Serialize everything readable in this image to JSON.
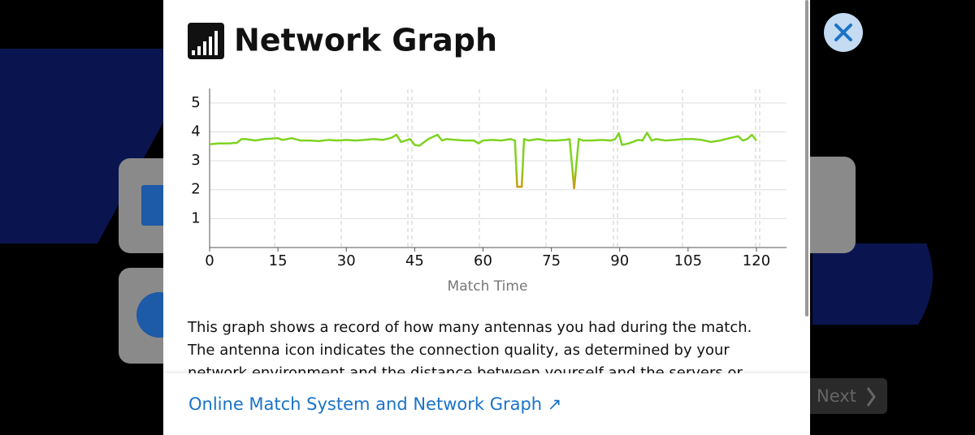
{
  "header": {
    "title": "Network Graph"
  },
  "chart_data": {
    "type": "line",
    "xlabel": "Match Time",
    "x": [
      0,
      2,
      4,
      6,
      7,
      8,
      10,
      12,
      14,
      15,
      16,
      18,
      20,
      22,
      24,
      26,
      28,
      30,
      32,
      34,
      36,
      38,
      40,
      41,
      42,
      43,
      44,
      45,
      46,
      48,
      50,
      51,
      52,
      54,
      56,
      58,
      59,
      60,
      62,
      64,
      66,
      67,
      67.5,
      68.5,
      69,
      70,
      72,
      74,
      76,
      78,
      79,
      80,
      81,
      82,
      84,
      86,
      88,
      89,
      89.8,
      90.5,
      92,
      94,
      95,
      96,
      97,
      98,
      100,
      102,
      104,
      106,
      108,
      110,
      112,
      114,
      116,
      117,
      118,
      119,
      120
    ],
    "values": [
      3.57,
      3.6,
      3.6,
      3.62,
      3.75,
      3.75,
      3.7,
      3.75,
      3.77,
      3.78,
      3.72,
      3.78,
      3.7,
      3.7,
      3.68,
      3.72,
      3.7,
      3.72,
      3.7,
      3.72,
      3.75,
      3.72,
      3.8,
      3.9,
      3.65,
      3.7,
      3.75,
      3.55,
      3.52,
      3.75,
      3.9,
      3.7,
      3.75,
      3.72,
      3.7,
      3.7,
      3.6,
      3.7,
      3.72,
      3.7,
      3.75,
      3.7,
      2.1,
      2.1,
      3.75,
      3.7,
      3.75,
      3.7,
      3.7,
      3.72,
      3.75,
      2.05,
      3.75,
      3.7,
      3.7,
      3.72,
      3.7,
      3.75,
      3.95,
      3.55,
      3.6,
      3.72,
      3.7,
      3.97,
      3.7,
      3.75,
      3.7,
      3.72,
      3.75,
      3.75,
      3.72,
      3.65,
      3.7,
      3.78,
      3.85,
      3.7,
      3.75,
      3.9,
      3.7
    ],
    "color": "#7ed321",
    "low_color": "#d9900a",
    "xlim": [
      0,
      126.6
    ],
    "ylim": [
      0,
      5.5
    ],
    "xticks": [
      0,
      15,
      30,
      45,
      60,
      75,
      90,
      105,
      120
    ],
    "yticks": [
      1,
      2,
      3,
      4,
      5
    ],
    "grid": true
  },
  "body": {
    "text": "This graph shows a record of how many antennas you had during the match. The antenna icon indicates the connection quality, as determined by your network environment and the distance between yourself and the servers or your opponent."
  },
  "footer": {
    "link": "Online Match System and Network Graph ↗"
  },
  "background": {
    "next_button": "Next"
  }
}
